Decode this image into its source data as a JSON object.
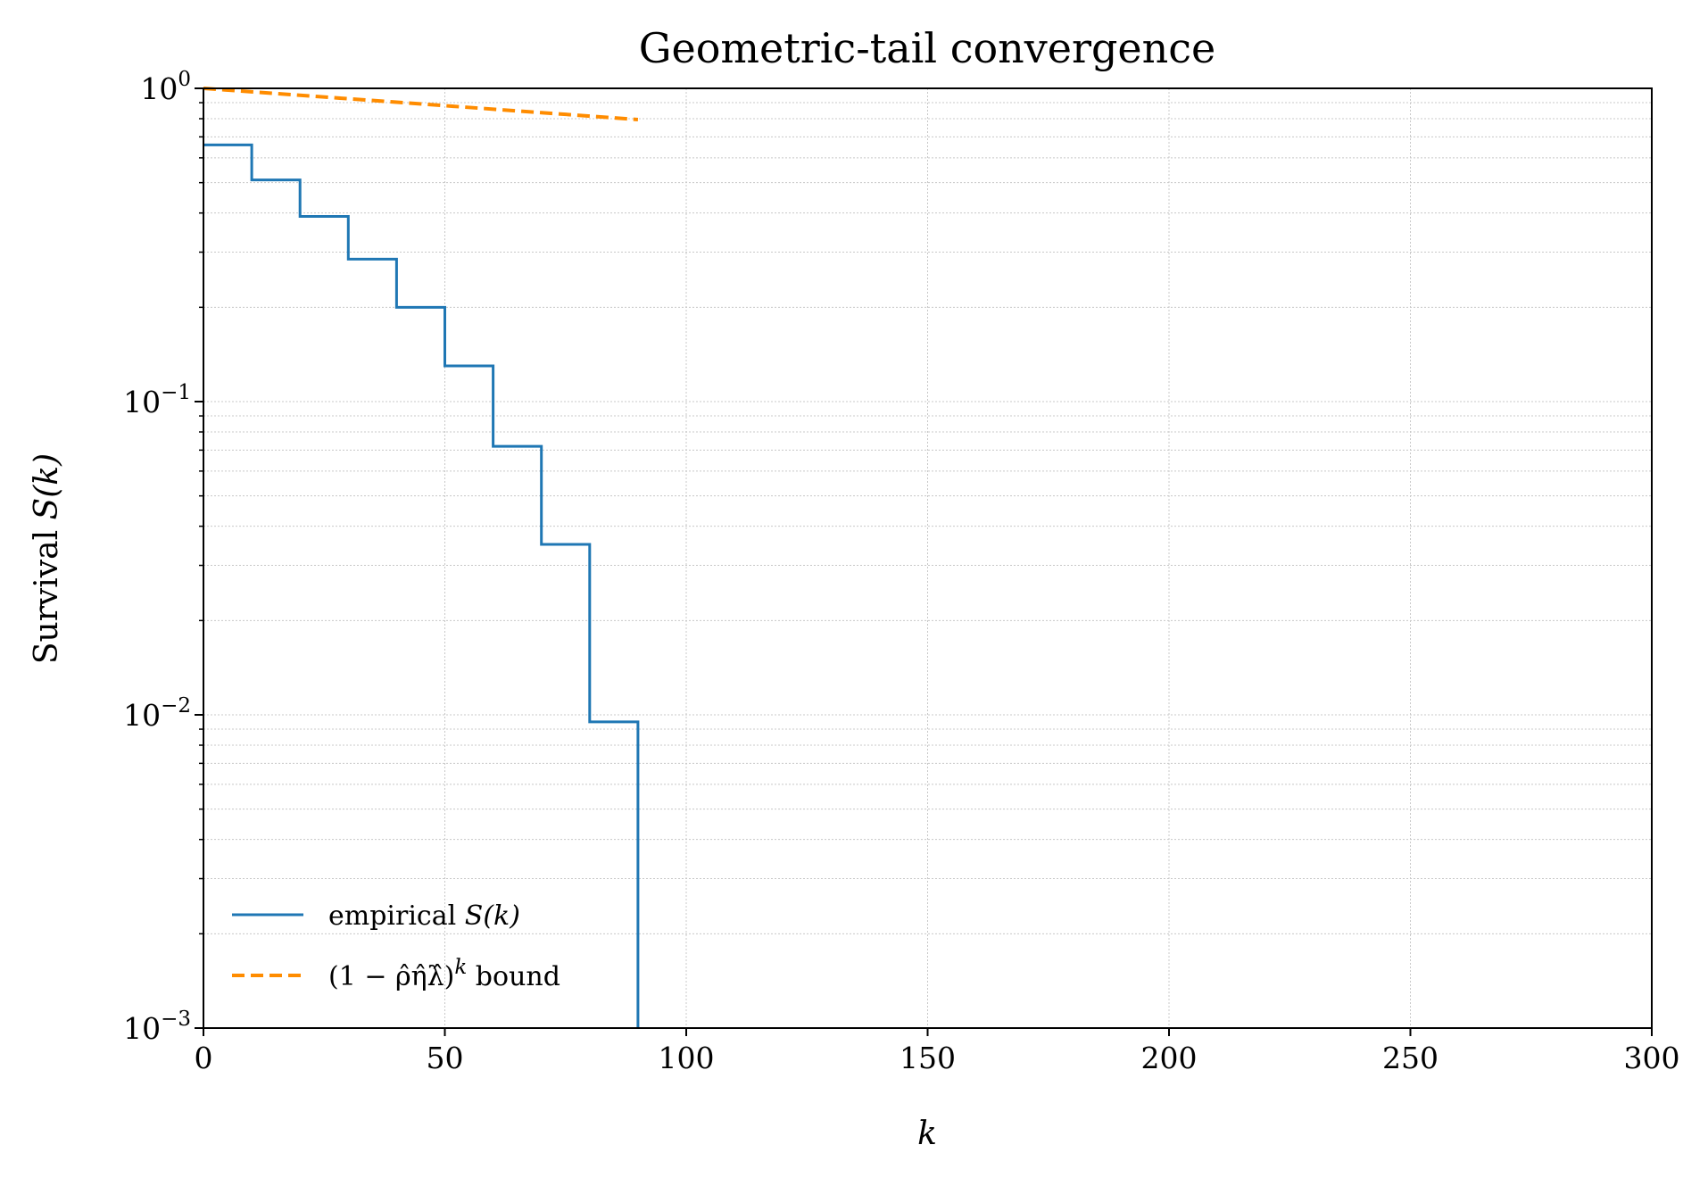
{
  "chart_data": {
    "type": "line",
    "title": "Geometric-tail convergence",
    "xlabel": "k",
    "ylabel_prefix": "Survival ",
    "ylabel_math": "S(k)",
    "xlim": [
      0,
      300
    ],
    "ylim": [
      0.001,
      1
    ],
    "yscale": "log",
    "grid": true,
    "legend_position": "lower-left",
    "x_ticks": [
      "0",
      "50",
      "100",
      "150",
      "200",
      "250",
      "300"
    ],
    "x_tick_values": [
      0,
      50,
      100,
      150,
      200,
      250,
      300
    ],
    "y_ticks": [
      {
        "value": 1,
        "base": "10",
        "exp": "0"
      },
      {
        "value": 0.1,
        "base": "10",
        "exp": "−1"
      },
      {
        "value": 0.01,
        "base": "10",
        "exp": "−2"
      },
      {
        "value": 0.001,
        "base": "10",
        "exp": "−3"
      }
    ],
    "series": [
      {
        "name": "empirical S(k)",
        "style": "step",
        "color": "#1f77b4",
        "x": [
          0,
          10,
          20,
          30,
          40,
          50,
          60,
          70,
          80,
          90
        ],
        "y": [
          0.66,
          0.51,
          0.39,
          0.285,
          0.2,
          0.13,
          0.072,
          0.035,
          0.0095,
          0.0009
        ]
      },
      {
        "name": "(1 − ρ̂η̂λ̂)^k bound",
        "style": "dashed",
        "color": "#ff8c00",
        "x": [
          0,
          90
        ],
        "y": [
          1.0,
          0.795
        ]
      }
    ],
    "legend": {
      "empirical_prefix": "empirical ",
      "empirical_math": "S(k)",
      "bound_math": "(1 − ρ̂η̂λ̂)",
      "bound_exp": "k",
      "bound_suffix": " bound"
    }
  }
}
